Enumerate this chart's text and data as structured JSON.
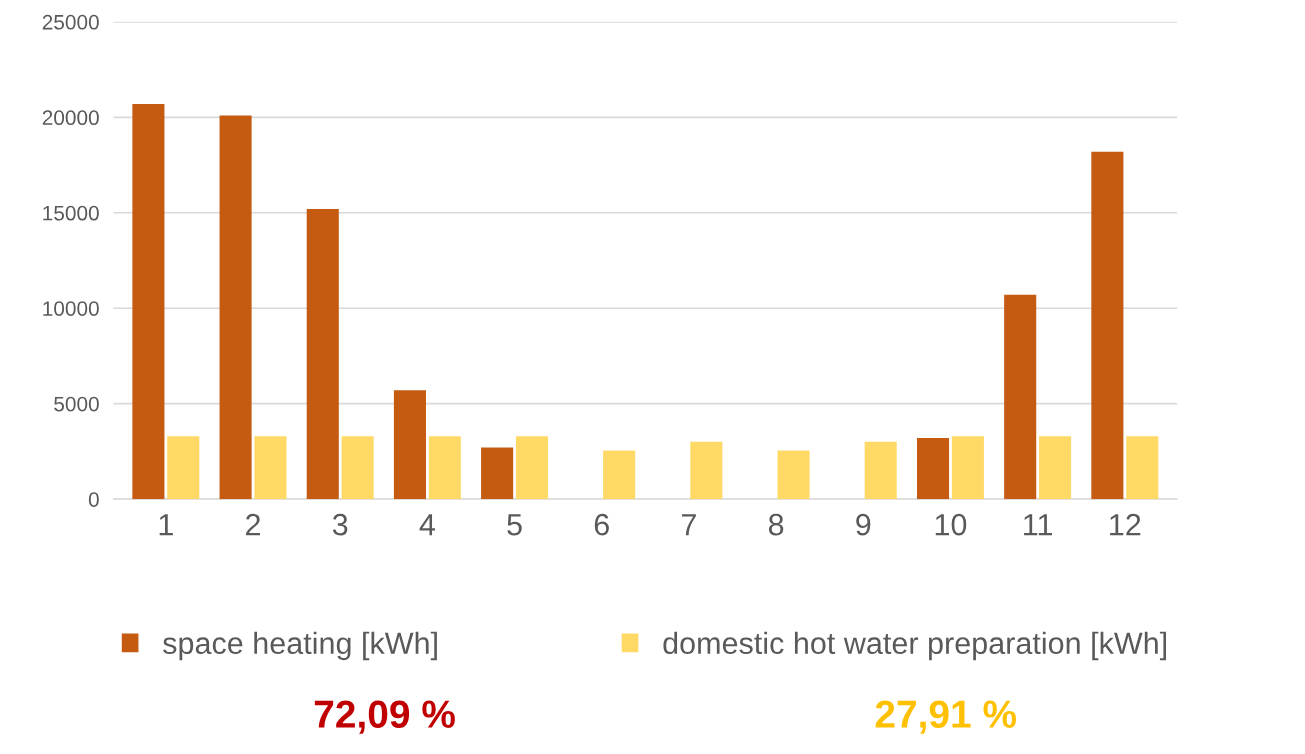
{
  "chart_data": {
    "type": "bar",
    "categories": [
      "1",
      "2",
      "3",
      "4",
      "5",
      "6",
      "7",
      "8",
      "9",
      "10",
      "11",
      "12"
    ],
    "series": [
      {
        "name": "space heating [kWh]",
        "color": "#c55a11",
        "values": [
          20700,
          20100,
          15200,
          5700,
          2700,
          0,
          0,
          0,
          0,
          3200,
          10700,
          18200
        ]
      },
      {
        "name": "domestic hot water preparation [kWh]",
        "color": "#ffd966",
        "values": [
          3300,
          3300,
          3300,
          3300,
          3300,
          2550,
          3000,
          2550,
          3000,
          3300,
          3300,
          3300
        ]
      }
    ],
    "ylim": [
      0,
      25000
    ],
    "yticks": [
      0,
      5000,
      10000,
      15000,
      20000,
      25000
    ],
    "grid": "y",
    "legend": "bottom",
    "annotations": [
      "72,09 %",
      "27,91 %"
    ]
  }
}
